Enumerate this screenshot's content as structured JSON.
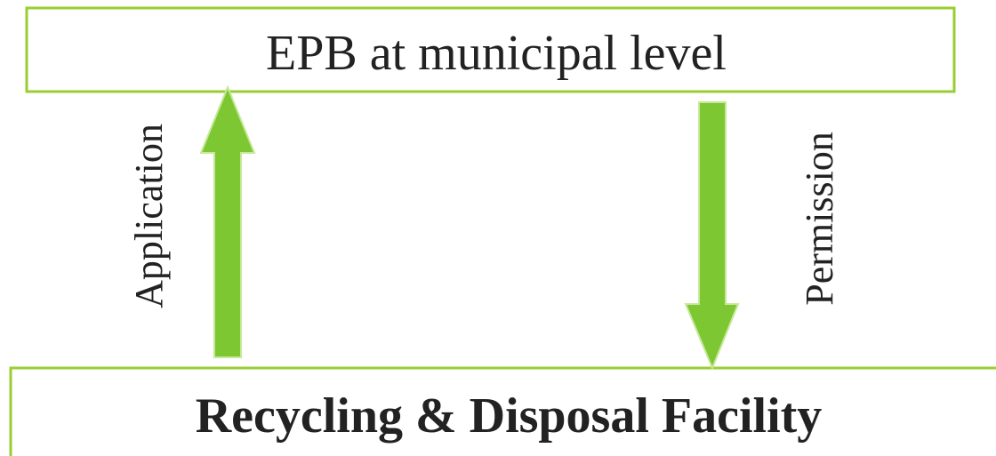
{
  "nodes": [
    {
      "label": "EPB at municipal level"
    },
    {
      "label": "Recycling & Disposal Facility"
    }
  ],
  "edges": [
    {
      "label": "Application"
    },
    {
      "label": "Permission"
    }
  ]
}
